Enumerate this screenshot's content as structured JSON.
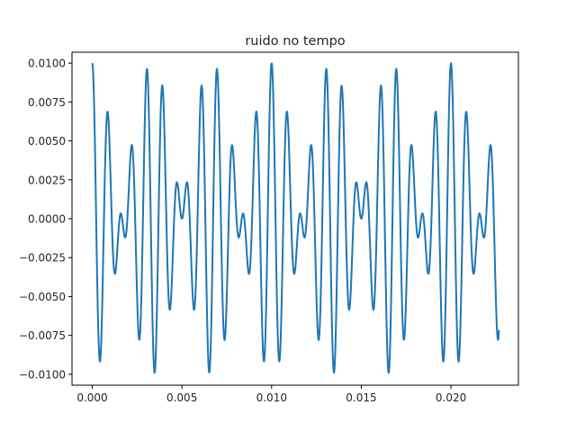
{
  "chart_data": {
    "type": "line",
    "title": "ruido no tempo",
    "xlabel": "",
    "ylabel": "",
    "xlim": [
      -0.00113,
      0.02376
    ],
    "ylim": [
      -0.0107,
      0.0107
    ],
    "xticks": [
      0.0,
      0.005,
      0.01,
      0.015,
      0.02
    ],
    "xtick_labels": [
      "0.000",
      "0.005",
      "0.010",
      "0.015",
      "0.020"
    ],
    "yticks": [
      0.01,
      0.0075,
      0.005,
      0.0025,
      0.0,
      -0.0025,
      -0.005,
      -0.0075,
      -0.01
    ],
    "ytick_labels": [
      "0.0100",
      "0.0075",
      "0.0050",
      "0.0025",
      "0.0000",
      "−0.0025",
      "−0.0050",
      "−0.0075",
      "−0.0100"
    ],
    "grid": false,
    "series": [
      {
        "color": "#1f77b4",
        "function": "0.005*cos(2*pi*1000*t) + 0.005*cos(2*pi*1300*t)",
        "x_start": 0.0,
        "x_end": 0.02268,
        "x_step": 2.27e-05
      }
    ]
  }
}
